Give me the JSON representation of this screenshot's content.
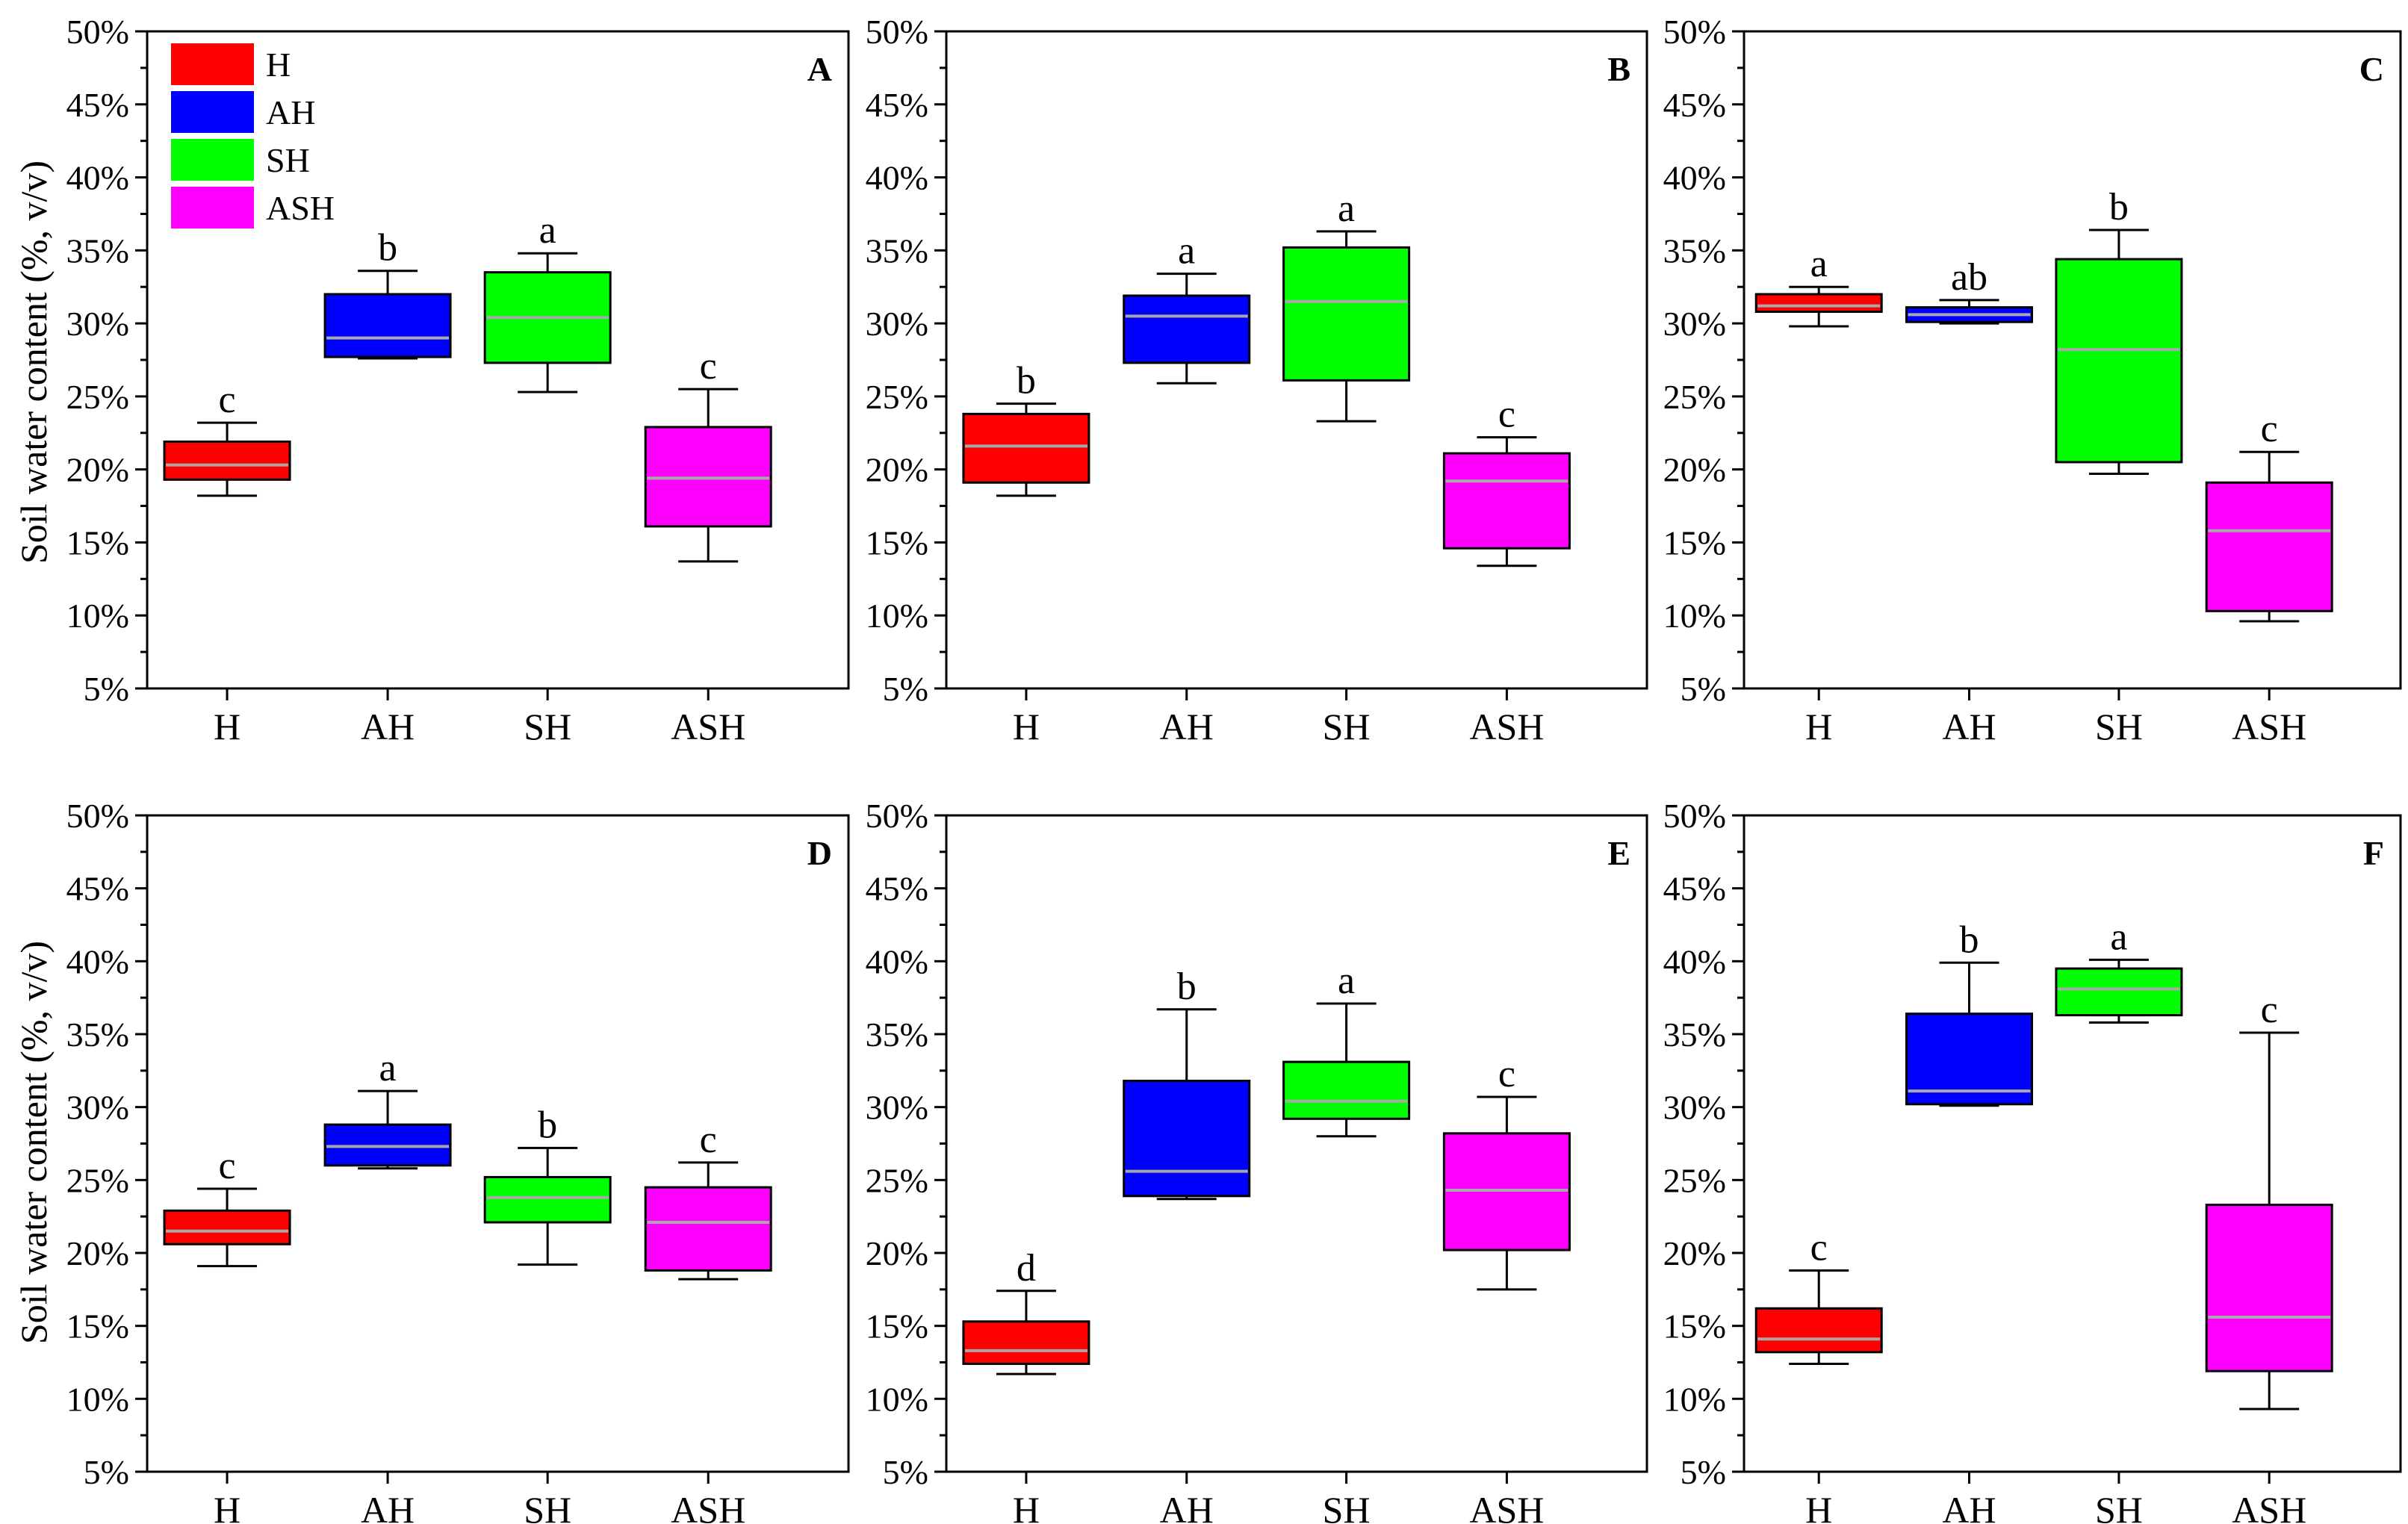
{
  "figure": {
    "ylabel": "Soil water content (%, v/v)"
  },
  "legend": [
    {
      "name": "H",
      "color": "#ff0000"
    },
    {
      "name": "AH",
      "color": "#0000ff"
    },
    {
      "name": "SH",
      "color": "#00ff00"
    },
    {
      "name": "ASH",
      "color": "#ff00ff"
    }
  ],
  "chart_data": [
    {
      "type": "box",
      "panel": "A",
      "categories": [
        "H",
        "AH",
        "SH",
        "ASH"
      ],
      "colors": [
        "#ff0000",
        "#0000ff",
        "#00ff00",
        "#ff00ff"
      ],
      "ylim": [
        5,
        50
      ],
      "yticks": [
        "5%",
        "10%",
        "15%",
        "20%",
        "25%",
        "30%",
        "35%",
        "40%",
        "45%",
        "50%"
      ],
      "ylabel": "Soil water content (%, v/v)",
      "boxes": [
        {
          "min": 18.2,
          "q1": 19.3,
          "median": 20.3,
          "q3": 21.9,
          "max": 23.2,
          "sig": "c"
        },
        {
          "min": 27.6,
          "q1": 27.7,
          "median": 29.0,
          "q3": 32.0,
          "max": 33.6,
          "sig": "b"
        },
        {
          "min": 25.3,
          "q1": 27.3,
          "median": 30.4,
          "q3": 33.5,
          "max": 34.8,
          "sig": "a"
        },
        {
          "min": 13.7,
          "q1": 16.1,
          "median": 19.4,
          "q3": 22.9,
          "max": 25.5,
          "sig": "c"
        }
      ]
    },
    {
      "type": "box",
      "panel": "B",
      "categories": [
        "H",
        "AH",
        "SH",
        "ASH"
      ],
      "colors": [
        "#ff0000",
        "#0000ff",
        "#00ff00",
        "#ff00ff"
      ],
      "ylim": [
        5,
        50
      ],
      "yticks": [
        "5%",
        "10%",
        "15%",
        "20%",
        "25%",
        "30%",
        "35%",
        "40%",
        "45%",
        "50%"
      ],
      "boxes": [
        {
          "min": 18.2,
          "q1": 19.1,
          "median": 21.6,
          "q3": 23.8,
          "max": 24.5,
          "sig": "b"
        },
        {
          "min": 25.9,
          "q1": 27.3,
          "median": 30.5,
          "q3": 31.9,
          "max": 33.4,
          "sig": "a"
        },
        {
          "min": 23.3,
          "q1": 26.1,
          "median": 31.5,
          "q3": 35.2,
          "max": 36.3,
          "sig": "a"
        },
        {
          "min": 13.4,
          "q1": 14.6,
          "median": 19.2,
          "q3": 21.1,
          "max": 22.2,
          "sig": "c"
        }
      ]
    },
    {
      "type": "box",
      "panel": "C",
      "categories": [
        "H",
        "AH",
        "SH",
        "ASH"
      ],
      "colors": [
        "#ff0000",
        "#0000ff",
        "#00ff00",
        "#ff00ff"
      ],
      "ylim": [
        5,
        50
      ],
      "yticks": [
        "5%",
        "10%",
        "15%",
        "20%",
        "25%",
        "30%",
        "35%",
        "40%",
        "45%",
        "50%"
      ],
      "boxes": [
        {
          "min": 29.8,
          "q1": 30.8,
          "median": 31.2,
          "q3": 32.0,
          "max": 32.5,
          "sig": "a"
        },
        {
          "min": 30.0,
          "q1": 30.1,
          "median": 30.6,
          "q3": 31.1,
          "max": 31.6,
          "sig": "ab"
        },
        {
          "min": 19.7,
          "q1": 20.5,
          "median": 28.2,
          "q3": 34.4,
          "max": 36.4,
          "sig": "b"
        },
        {
          "min": 9.6,
          "q1": 10.3,
          "median": 15.8,
          "q3": 19.1,
          "max": 21.2,
          "sig": "c"
        }
      ]
    },
    {
      "type": "box",
      "panel": "D",
      "categories": [
        "H",
        "AH",
        "SH",
        "ASH"
      ],
      "colors": [
        "#ff0000",
        "#0000ff",
        "#00ff00",
        "#ff00ff"
      ],
      "ylim": [
        5,
        50
      ],
      "yticks": [
        "5%",
        "10%",
        "15%",
        "20%",
        "25%",
        "30%",
        "35%",
        "40%",
        "45%",
        "50%"
      ],
      "ylabel": "Soil water content (%, v/v)",
      "boxes": [
        {
          "min": 19.1,
          "q1": 20.6,
          "median": 21.5,
          "q3": 22.9,
          "max": 24.4,
          "sig": "c"
        },
        {
          "min": 25.8,
          "q1": 26.0,
          "median": 27.3,
          "q3": 28.8,
          "max": 31.1,
          "sig": "a"
        },
        {
          "min": 19.2,
          "q1": 22.1,
          "median": 23.8,
          "q3": 25.2,
          "max": 27.2,
          "sig": "b"
        },
        {
          "min": 18.2,
          "q1": 18.8,
          "median": 22.1,
          "q3": 24.5,
          "max": 26.2,
          "sig": "c"
        }
      ]
    },
    {
      "type": "box",
      "panel": "E",
      "categories": [
        "H",
        "AH",
        "SH",
        "ASH"
      ],
      "colors": [
        "#ff0000",
        "#0000ff",
        "#00ff00",
        "#ff00ff"
      ],
      "ylim": [
        5,
        50
      ],
      "yticks": [
        "5%",
        "10%",
        "15%",
        "20%",
        "25%",
        "30%",
        "35%",
        "40%",
        "45%",
        "50%"
      ],
      "boxes": [
        {
          "min": 11.7,
          "q1": 12.4,
          "median": 13.3,
          "q3": 15.3,
          "max": 17.4,
          "sig": "d"
        },
        {
          "min": 23.7,
          "q1": 23.9,
          "median": 25.6,
          "q3": 31.8,
          "max": 36.7,
          "sig": "b"
        },
        {
          "min": 28.0,
          "q1": 29.2,
          "median": 30.4,
          "q3": 33.1,
          "max": 37.1,
          "sig": "a"
        },
        {
          "min": 17.5,
          "q1": 20.2,
          "median": 24.3,
          "q3": 28.2,
          "max": 30.7,
          "sig": "c"
        }
      ]
    },
    {
      "type": "box",
      "panel": "F",
      "categories": [
        "H",
        "AH",
        "SH",
        "ASH"
      ],
      "colors": [
        "#ff0000",
        "#0000ff",
        "#00ff00",
        "#ff00ff"
      ],
      "ylim": [
        5,
        50
      ],
      "yticks": [
        "5%",
        "10%",
        "15%",
        "20%",
        "25%",
        "30%",
        "35%",
        "40%",
        "45%",
        "50%"
      ],
      "boxes": [
        {
          "min": 12.4,
          "q1": 13.2,
          "median": 14.1,
          "q3": 16.2,
          "max": 18.8,
          "sig": "c"
        },
        {
          "min": 30.1,
          "q1": 30.2,
          "median": 31.1,
          "q3": 36.4,
          "max": 39.9,
          "sig": "b"
        },
        {
          "min": 35.8,
          "q1": 36.3,
          "median": 38.1,
          "q3": 39.5,
          "max": 40.1,
          "sig": "a"
        },
        {
          "min": 9.3,
          "q1": 11.9,
          "median": 15.6,
          "q3": 23.3,
          "max": 35.1,
          "sig": "c"
        }
      ]
    }
  ]
}
